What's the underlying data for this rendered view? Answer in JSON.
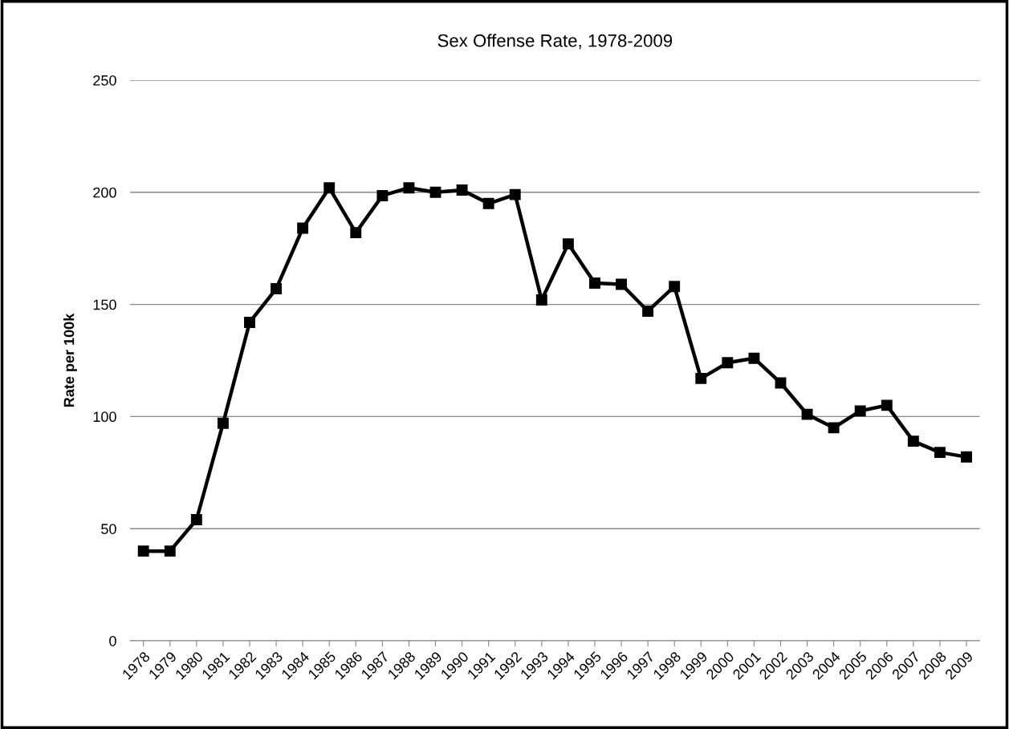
{
  "chart_data": {
    "type": "line",
    "title": "Sex Offense Rate, 1978-2009",
    "ylabel": "Rate per 100k",
    "categories": [
      "1978",
      "1979",
      "1980",
      "1981",
      "1982",
      "1983",
      "1984",
      "1985",
      "1986",
      "1987",
      "1988",
      "1989",
      "1990",
      "1991",
      "1992",
      "1993",
      "1994",
      "1995",
      "1996",
      "1997",
      "1998",
      "1999",
      "2000",
      "2001",
      "2002",
      "2003",
      "2004",
      "2005",
      "2006",
      "2007",
      "2008",
      "2009"
    ],
    "series": [
      {
        "color": "#000000",
        "values": [
          40,
          40,
          54,
          97,
          142,
          157,
          184,
          202,
          182,
          198.5,
          202,
          200,
          201,
          195,
          199,
          152,
          177,
          159.5,
          159,
          147,
          158,
          117,
          124,
          126,
          115,
          101,
          95,
          102.5,
          105,
          89,
          84,
          82
        ]
      }
    ],
    "ylim": [
      0,
      250
    ],
    "yticks": [
      0,
      50,
      100,
      150,
      200,
      250
    ],
    "grid": "y",
    "marker": "square",
    "line_style": "solid"
  }
}
